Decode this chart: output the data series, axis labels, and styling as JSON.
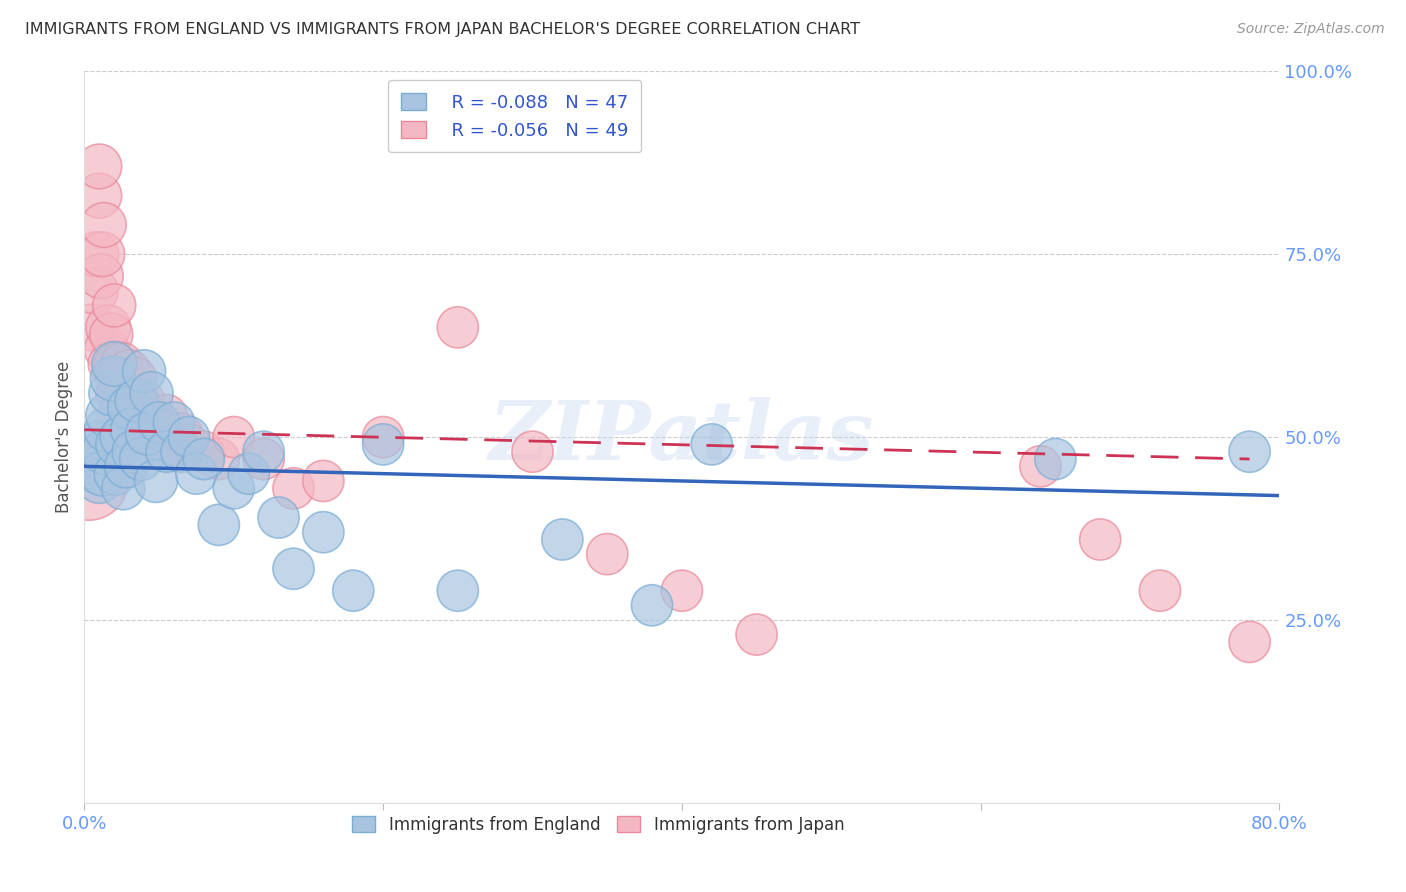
{
  "title": "IMMIGRANTS FROM ENGLAND VS IMMIGRANTS FROM JAPAN BACHELOR'S DEGREE CORRELATION CHART",
  "source": "Source: ZipAtlas.com",
  "ylabel": "Bachelor's Degree",
  "x_min": 0.0,
  "x_max": 0.8,
  "y_min": 0.0,
  "y_max": 1.0,
  "x_ticks": [
    0.0,
    0.2,
    0.4,
    0.6,
    0.8
  ],
  "y_ticks": [
    0.0,
    0.25,
    0.5,
    0.75,
    1.0
  ],
  "y_tick_labels": [
    "",
    "25.0%",
    "50.0%",
    "75.0%",
    "100.0%"
  ],
  "england_color": "#a8c4e0",
  "england_edge_color": "#7aadd4",
  "japan_color": "#f4b8c4",
  "japan_edge_color": "#e8889a",
  "england_R": -0.088,
  "england_N": 47,
  "japan_R": -0.056,
  "japan_N": 49,
  "england_line_color": "#3366bb",
  "japan_line_color": "#cc3355",
  "england_scatter_x": [
    0.005,
    0.008,
    0.01,
    0.01,
    0.012,
    0.013,
    0.015,
    0.016,
    0.018,
    0.019,
    0.02,
    0.021,
    0.022,
    0.025,
    0.026,
    0.028,
    0.03,
    0.032,
    0.033,
    0.035,
    0.038,
    0.04,
    0.042,
    0.045,
    0.048,
    0.05,
    0.055,
    0.06,
    0.065,
    0.07,
    0.075,
    0.08,
    0.09,
    0.1,
    0.11,
    0.12,
    0.13,
    0.14,
    0.16,
    0.18,
    0.2,
    0.25,
    0.32,
    0.38,
    0.42,
    0.65,
    0.78
  ],
  "england_scatter_y": [
    0.47,
    0.455,
    0.49,
    0.44,
    0.45,
    0.48,
    0.51,
    0.53,
    0.56,
    0.58,
    0.6,
    0.45,
    0.49,
    0.5,
    0.43,
    0.46,
    0.54,
    0.51,
    0.48,
    0.55,
    0.47,
    0.59,
    0.505,
    0.56,
    0.44,
    0.52,
    0.48,
    0.52,
    0.48,
    0.5,
    0.45,
    0.47,
    0.38,
    0.43,
    0.45,
    0.48,
    0.39,
    0.32,
    0.37,
    0.29,
    0.49,
    0.29,
    0.36,
    0.27,
    0.49,
    0.47,
    0.48
  ],
  "england_scatter_size": [
    15,
    14,
    14,
    13,
    13,
    13,
    13,
    13,
    13,
    13,
    13,
    12,
    12,
    12,
    12,
    12,
    12,
    12,
    12,
    12,
    12,
    12,
    12,
    12,
    12,
    11,
    11,
    11,
    11,
    11,
    11,
    11,
    11,
    11,
    11,
    11,
    11,
    11,
    11,
    11,
    11,
    11,
    11,
    11,
    11,
    11,
    11
  ],
  "japan_scatter_x": [
    0.003,
    0.005,
    0.007,
    0.008,
    0.01,
    0.01,
    0.011,
    0.012,
    0.013,
    0.015,
    0.016,
    0.017,
    0.018,
    0.02,
    0.021,
    0.022,
    0.023,
    0.025,
    0.026,
    0.028,
    0.03,
    0.032,
    0.034,
    0.036,
    0.038,
    0.04,
    0.043,
    0.046,
    0.05,
    0.055,
    0.06,
    0.065,
    0.07,
    0.08,
    0.09,
    0.1,
    0.12,
    0.14,
    0.16,
    0.2,
    0.25,
    0.3,
    0.35,
    0.4,
    0.45,
    0.64,
    0.68,
    0.72,
    0.78
  ],
  "japan_scatter_y": [
    0.44,
    0.65,
    0.7,
    0.75,
    0.83,
    0.87,
    0.72,
    0.75,
    0.79,
    0.62,
    0.65,
    0.6,
    0.64,
    0.68,
    0.6,
    0.56,
    0.58,
    0.6,
    0.54,
    0.57,
    0.59,
    0.55,
    0.58,
    0.51,
    0.54,
    0.55,
    0.51,
    0.52,
    0.51,
    0.53,
    0.49,
    0.505,
    0.49,
    0.48,
    0.47,
    0.5,
    0.47,
    0.43,
    0.44,
    0.5,
    0.65,
    0.48,
    0.34,
    0.29,
    0.23,
    0.46,
    0.36,
    0.29,
    0.22
  ],
  "japan_scatter_size": [
    40,
    14,
    14,
    13,
    13,
    13,
    13,
    13,
    13,
    13,
    13,
    12,
    12,
    12,
    12,
    12,
    12,
    12,
    12,
    12,
    12,
    12,
    12,
    12,
    12,
    11,
    11,
    11,
    11,
    11,
    11,
    11,
    11,
    11,
    11,
    11,
    11,
    11,
    11,
    11,
    11,
    11,
    11,
    11,
    11,
    11,
    11,
    11,
    11
  ],
  "england_line_x": [
    0.0,
    0.8
  ],
  "england_line_y": [
    0.46,
    0.42
  ],
  "japan_line_x": [
    0.0,
    0.78
  ],
  "japan_line_y": [
    0.51,
    0.47
  ],
  "watermark": "ZIPatlas",
  "background_color": "#ffffff",
  "grid_color": "#cccccc",
  "title_color": "#333333",
  "tick_color": "#6699ff",
  "ylabel_color": "#555555"
}
